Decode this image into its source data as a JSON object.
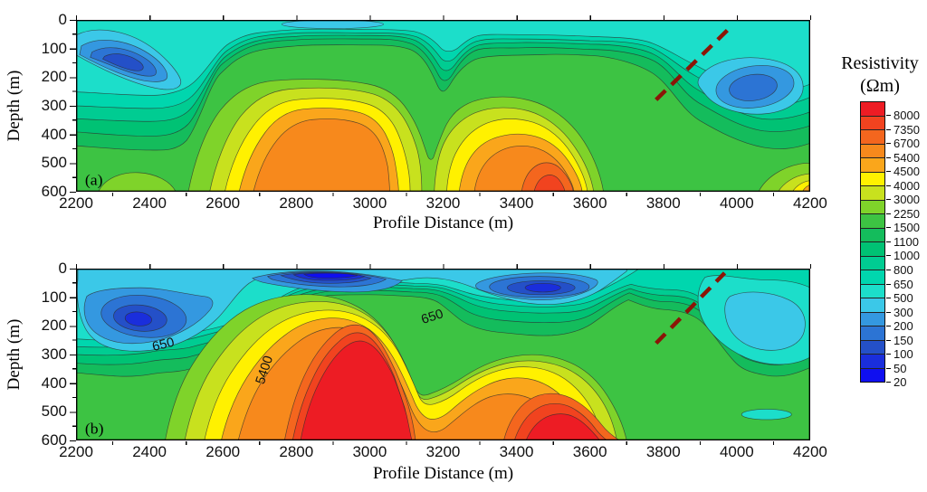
{
  "figure": {
    "panels": [
      {
        "tag": "(a)",
        "xlabel": "Profile Distance (m)",
        "ylabel": "Depth (m)",
        "x_ticks": [
          "2200",
          "2400",
          "2600",
          "2800",
          "3000",
          "3200",
          "3400",
          "3600",
          "3800",
          "4000",
          "4200"
        ],
        "y_ticks": [
          "0",
          "100",
          "200",
          "300",
          "400",
          "500",
          "600"
        ]
      },
      {
        "tag": "(b)",
        "xlabel": "Profile Distance (m)",
        "ylabel": "Depth (m)",
        "x_ticks": [
          "2200",
          "2400",
          "2600",
          "2800",
          "3000",
          "3200",
          "3400",
          "3600",
          "3800",
          "4000",
          "4200"
        ],
        "y_ticks": [
          "0",
          "100",
          "200",
          "300",
          "400",
          "500",
          "600"
        ],
        "contour_labels": [
          "650",
          "650",
          "5400"
        ]
      }
    ]
  },
  "legend": {
    "title": "Resistivity",
    "units": "(Ωm)",
    "labels": [
      "8000",
      "7350",
      "6700",
      "5400",
      "4500",
      "4000",
      "3000",
      "2250",
      "1500",
      "1100",
      "1000",
      "800",
      "650",
      "500",
      "300",
      "200",
      "150",
      "100",
      "50",
      "20"
    ],
    "colors": [
      "#ED1C24",
      "#F1431F",
      "#F4661E",
      "#F7891C",
      "#FAA61B",
      "#FFF100",
      "#C8E11E",
      "#7FD32A",
      "#3DC343",
      "#14BC5C",
      "#00C274",
      "#00CC92",
      "#00D6AE",
      "#1CDECA",
      "#3BC8E8",
      "#3498E0",
      "#2C74D4",
      "#2450C8",
      "#1A2EDC",
      "#0F0FF0"
    ]
  },
  "chart_data": {
    "type": "heatmap",
    "subtype": "2D electrical resistivity contour cross-sections (two panels sharing one color scale)",
    "colorbar": {
      "title": "Resistivity",
      "units": "(Ωm)",
      "levels_low_to_high": [
        20,
        50,
        100,
        150,
        200,
        300,
        500,
        650,
        800,
        1000,
        1100,
        1500,
        2250,
        3000,
        4000,
        4500,
        5400,
        6700,
        7350,
        8000
      ],
      "colors_high_to_low": [
        "#ED1C24",
        "#F1431F",
        "#F4661E",
        "#F7891C",
        "#FAA61B",
        "#FFF100",
        "#C8E11E",
        "#7FD32A",
        "#3DC343",
        "#14BC5C",
        "#00C274",
        "#00CC92",
        "#00D6AE",
        "#1CDECA",
        "#3BC8E8",
        "#3498E0",
        "#2C74D4",
        "#2450C8",
        "#1A2EDC",
        "#0F0FF0"
      ]
    },
    "panels": [
      {
        "tag": "(a)",
        "xlabel": "Profile Distance (m)",
        "ylabel": "Depth (m)",
        "x_range_m": [
          2200,
          4200
        ],
        "depth_range_m": [
          0,
          600
        ],
        "x_tick_step_m": 200,
        "y_tick_step_m": 100,
        "depth_axis_inverted": true,
        "features": [
          {
            "name": "conductive shallow blob",
            "resistivity_ohm_m": "150-500",
            "x_m": [
              2220,
              2500
            ],
            "depth_m": [
              30,
              240
            ]
          },
          {
            "name": "shallow low-resistivity cover layer",
            "resistivity_ohm_m": "500-650",
            "x_m": [
              2200,
              4200
            ],
            "depth_m": [
              0,
              60
            ]
          },
          {
            "name": "resistive dome",
            "resistivity_ohm_m": "4500-6700",
            "x_m": [
              2600,
              3100
            ],
            "depth_m": [
              230,
              600
            ]
          },
          {
            "name": "low-resistivity valley between domes",
            "resistivity_ohm_m": "1500-3000",
            "x_m": [
              3100,
              3280
            ],
            "depth_m": [
              100,
              500
            ]
          },
          {
            "name": "resistive body with 6700-8000 core",
            "resistivity_ohm_m": "4500-8000",
            "x_m": [
              3250,
              3680
            ],
            "depth_m": [
              380,
              600
            ]
          },
          {
            "name": "conductive zone",
            "resistivity_ohm_m": "150-500",
            "x_m": [
              3950,
              4200
            ],
            "depth_m": [
              130,
              360
            ]
          },
          {
            "name": "resistive corner wedge",
            "resistivity_ohm_m": "3000-5400",
            "x_m": [
              4080,
              4200
            ],
            "depth_m": [
              490,
              600
            ]
          },
          {
            "name": "inferred fault (dashed red line)",
            "from_x_depth_m": [
              3780,
              280
            ],
            "to_x_depth_m": [
              3970,
              30
            ]
          }
        ]
      },
      {
        "tag": "(b)",
        "xlabel": "Profile Distance (m)",
        "ylabel": "Depth (m)",
        "x_range_m": [
          2200,
          4200
        ],
        "depth_range_m": [
          0,
          600
        ],
        "x_tick_step_m": 200,
        "y_tick_step_m": 100,
        "depth_axis_inverted": true,
        "contour_line_labels": [
          {
            "text": "650",
            "x_m": 2430,
            "depth_m": 260
          },
          {
            "text": "650",
            "x_m": 3170,
            "depth_m": 165
          },
          {
            "text": "5400",
            "x_m": 2710,
            "depth_m": 350
          }
        ],
        "features": [
          {
            "name": "very conductive surface lens",
            "resistivity_ohm_m": "20-100",
            "x_m": [
              2700,
              3070
            ],
            "depth_m": [
              0,
              60
            ]
          },
          {
            "name": "conductive blob",
            "resistivity_ohm_m": "100-300",
            "x_m": [
              2250,
              2620
            ],
            "depth_m": [
              60,
              270
            ]
          },
          {
            "name": "conductive zone",
            "resistivity_ohm_m": "100-300",
            "x_m": [
              3300,
              3680
            ],
            "depth_m": [
              15,
              150
            ]
          },
          {
            "name": "large resistive body, core > 8000",
            "resistivity_ohm_m": "5400->8000",
            "x_m": [
              2700,
              3160
            ],
            "depth_m": [
              170,
              600
            ]
          },
          {
            "name": "resistive body, core > 8000",
            "resistivity_ohm_m": "5400->8000",
            "x_m": [
              3360,
              3700
            ],
            "depth_m": [
              440,
              600
            ]
          },
          {
            "name": "conductive zone",
            "resistivity_ohm_m": "300-500",
            "x_m": [
              3950,
              4200
            ],
            "depth_m": [
              40,
              350
            ]
          },
          {
            "name": "inferred fault (dashed red line)",
            "from_x_depth_m": [
              3780,
              255
            ],
            "to_x_depth_m": [
              3970,
              15
            ]
          }
        ]
      }
    ],
    "fault_line_color": "#8B1507",
    "layout": {
      "legend_position": "right",
      "panels_stacked": "vertical",
      "grid": false
    }
  }
}
